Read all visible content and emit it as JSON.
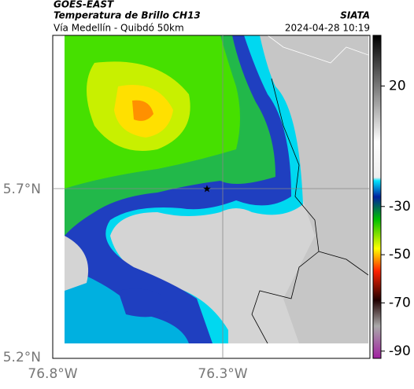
{
  "header": {
    "source": "GOES-EAST",
    "product": "Temperatura de Brillo CH13",
    "region": "Vía Medellín - Quibdó 50km",
    "org": "SIATA",
    "datetime": "2024-04-28 10:19"
  },
  "axes": {
    "lat_labels": [
      "5.7°N",
      "5.2°N"
    ],
    "lon_labels": [
      "76.8°W",
      "76.3°W"
    ]
  },
  "colorbar": {
    "range": [
      -93,
      41
    ],
    "ticks": [
      20,
      -30,
      -50,
      -70,
      -90
    ]
  }
}
